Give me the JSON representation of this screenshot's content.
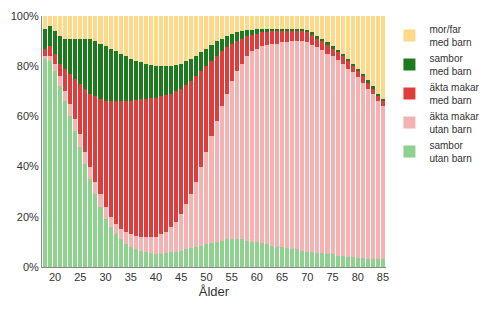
{
  "chart_data": {
    "type": "bar",
    "stacked": true,
    "x_label": "Ålder",
    "categories": [
      null,
      null,
      "20",
      null,
      null,
      null,
      null,
      "25",
      null,
      null,
      null,
      null,
      "30",
      null,
      null,
      null,
      null,
      "35",
      null,
      null,
      null,
      null,
      "40",
      null,
      null,
      null,
      null,
      "45",
      null,
      null,
      null,
      null,
      "50",
      null,
      null,
      null,
      null,
      "55",
      null,
      null,
      null,
      null,
      "60",
      null,
      null,
      null,
      null,
      "65",
      null,
      null,
      null,
      null,
      "70",
      null,
      null,
      null,
      null,
      "75",
      null,
      null,
      null,
      null,
      "80",
      null,
      null,
      null,
      null,
      "85"
    ],
    "ylim": [
      0,
      100
    ],
    "yticks": [
      {
        "value": 0,
        "label": "0%"
      },
      {
        "value": 20,
        "label": "20%"
      },
      {
        "value": 40,
        "label": "40%"
      },
      {
        "value": 60,
        "label": "60%"
      },
      {
        "value": 80,
        "label": "80%"
      },
      {
        "value": 100,
        "label": "100%"
      }
    ],
    "grid": true,
    "legend": "right",
    "series": [
      {
        "name": "sambor utan barn",
        "color": "#8fd18f",
        "values": [
          83,
          82,
          78,
          72,
          66,
          60,
          54,
          48,
          41,
          35,
          29,
          24,
          19,
          16,
          13,
          11,
          9,
          8,
          7,
          6.5,
          6,
          5.5,
          5,
          5,
          5.5,
          6,
          6,
          6.5,
          7,
          7.5,
          8,
          8.5,
          9,
          9.5,
          10,
          10.5,
          11,
          11,
          11,
          11,
          10.5,
          10,
          10,
          9.5,
          9,
          8.5,
          8,
          8,
          7.5,
          7,
          7,
          6.5,
          6,
          6,
          5.5,
          5.5,
          5,
          5,
          4.5,
          4.5,
          4,
          4,
          3.5,
          3.5,
          3,
          3,
          3,
          3
        ]
      },
      {
        "name": "äkta makar utan barn",
        "color": "#f4b2b2",
        "values": [
          1,
          2,
          3,
          4,
          4,
          5,
          5,
          5,
          5,
          5,
          5,
          5,
          5,
          4,
          4,
          4,
          5,
          5,
          5.5,
          5.5,
          6,
          6.5,
          7,
          8,
          8.5,
          10,
          12,
          14.5,
          18,
          21.5,
          26,
          31.5,
          37,
          42.5,
          48,
          53.5,
          58,
          63,
          67,
          70,
          73.5,
          76,
          77,
          78.5,
          79.5,
          80.5,
          81,
          81.5,
          82,
          83,
          83,
          83.5,
          83.5,
          82.5,
          82,
          81,
          80,
          79,
          78,
          76.5,
          75,
          73.5,
          72,
          70,
          68,
          66,
          63,
          61
        ]
      },
      {
        "name": "äkta makar med barn",
        "color": "#e03c3c",
        "values": [
          3,
          4,
          4,
          5,
          9,
          12,
          16,
          20,
          25,
          29,
          34,
          38,
          42,
          46,
          49,
          51,
          52,
          53,
          54,
          55,
          55,
          55.5,
          55.5,
          55,
          54.5,
          53,
          52,
          50,
          47.5,
          45,
          42,
          38,
          34,
          30,
          26,
          22,
          18.5,
          15,
          12,
          10,
          8,
          6.5,
          6,
          5.5,
          5,
          5,
          5,
          4.5,
          4.5,
          4,
          4,
          4,
          4,
          4,
          3.5,
          3.5,
          3.5,
          3,
          3,
          3,
          3,
          2.5,
          2.5,
          2.5,
          2.5,
          2,
          2,
          2
        ]
      },
      {
        "name": "sambor med barn",
        "color": "#1e7a1e",
        "values": [
          8,
          8,
          9,
          11,
          12,
          14,
          16,
          18,
          20,
          22,
          22,
          22,
          22,
          21,
          20,
          19,
          18,
          17,
          15.5,
          14.5,
          14,
          13,
          12.5,
          12,
          11.5,
          11,
          10.5,
          10,
          9.5,
          9,
          8,
          7.5,
          7,
          6.5,
          6,
          5,
          4.5,
          4,
          3.5,
          3,
          2.5,
          2,
          2,
          1.5,
          1.5,
          1,
          1,
          1,
          1,
          1,
          1,
          1,
          1,
          1,
          1,
          1,
          1,
          1,
          1,
          1,
          1,
          1,
          1,
          1,
          1,
          1,
          1,
          1
        ]
      },
      {
        "name": "mor/far med barn",
        "color": "#ffd98a",
        "values": [
          5,
          4,
          6,
          8,
          9,
          9,
          9,
          9,
          9,
          9,
          10,
          11,
          12,
          13,
          14,
          15,
          16,
          17,
          18,
          18.5,
          19,
          19.5,
          20,
          20,
          20,
          20,
          19.5,
          19,
          18,
          17,
          16,
          14.5,
          13,
          11.5,
          10,
          9,
          8,
          7,
          6.5,
          6,
          5.5,
          5.5,
          5,
          5,
          5,
          5,
          5,
          5,
          5,
          5,
          5,
          5,
          5.5,
          6.5,
          8,
          9,
          10.5,
          12,
          13.5,
          15,
          17,
          19,
          21,
          23,
          25.5,
          28,
          31,
          33
        ]
      }
    ]
  }
}
